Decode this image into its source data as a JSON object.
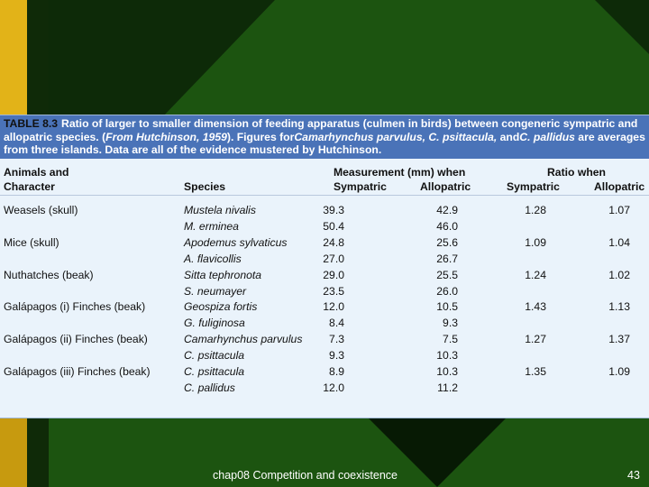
{
  "table": {
    "label": "TABLE 8.3",
    "caption_parts": [
      {
        "t": "Ratio of larger to smaller dimension of feeding apparatus (culmen in birds) between congeneric sympatric and allopatric species. (",
        "i": false
      },
      {
        "t": "From Hutchinson, 1959",
        "i": true
      },
      {
        "t": "). Figures for",
        "i": false
      },
      {
        "t": "Camarhynchus parvulus, C. psittacula,",
        "i": true
      },
      {
        "t": " and",
        "i": false
      },
      {
        "t": "C. pallidus",
        "i": true
      },
      {
        "t": " are averages from three islands. Data are all of the evidence mustered by Hutchinson.",
        "i": false
      }
    ],
    "headers": {
      "animals_line1": "Animals and",
      "animals_line2": "Character",
      "species": "Species",
      "measurement": "Measurement (mm) when",
      "ratio": "Ratio when",
      "sympatric": "Sympatric",
      "allopatric": "Allopatric"
    },
    "rows": [
      {
        "animal": "Weasels (skull)",
        "species": "Mustela nivalis",
        "sym": "39.3",
        "allo": "42.9",
        "rsym": "1.28",
        "rallo": "1.07"
      },
      {
        "animal": "",
        "species": "M. erminea",
        "sym": "50.4",
        "allo": "46.0",
        "rsym": "",
        "rallo": ""
      },
      {
        "animal": "Mice (skull)",
        "species": "Apodemus sylvaticus",
        "sym": "24.8",
        "allo": "25.6",
        "rsym": "1.09",
        "rallo": "1.04"
      },
      {
        "animal": "",
        "species": "A. flavicollis",
        "sym": "27.0",
        "allo": "26.7",
        "rsym": "",
        "rallo": ""
      },
      {
        "animal": "Nuthatches (beak)",
        "species": "Sitta tephronota",
        "sym": "29.0",
        "allo": "25.5",
        "rsym": "1.24",
        "rallo": "1.02"
      },
      {
        "animal": "",
        "species": "S. neumayer",
        "sym": "23.5",
        "allo": "26.0",
        "rsym": "",
        "rallo": ""
      },
      {
        "animal": "Galápagos (i) Finches (beak)",
        "species": "Geospiza fortis",
        "sym": "12.0",
        "allo": "10.5",
        "rsym": "1.43",
        "rallo": "1.13"
      },
      {
        "animal": "",
        "species": "G. fuliginosa",
        "sym": "8.4",
        "allo": "9.3",
        "rsym": "",
        "rallo": ""
      },
      {
        "animal": "Galápagos (ii) Finches (beak)",
        "species": "Camarhynchus parvulus",
        "sym": "7.3",
        "allo": "7.5",
        "rsym": "1.27",
        "rallo": "1.37"
      },
      {
        "animal": "",
        "species": "C. psittacula",
        "sym": "9.3",
        "allo": "10.3",
        "rsym": "",
        "rallo": ""
      },
      {
        "animal": "Galápagos (iii) Finches (beak)",
        "species": "C. psittacula",
        "sym": "8.9",
        "allo": "10.3",
        "rsym": "1.35",
        "rallo": "1.09"
      },
      {
        "animal": "",
        "species": "C. pallidus",
        "sym": "12.0",
        "allo": "11.2",
        "rsym": "",
        "rallo": ""
      }
    ]
  },
  "footer": {
    "text": "chap08 Competition and coexistence",
    "page": "43"
  },
  "colors": {
    "background": "#1c5410",
    "accent_bar": "#e2b318",
    "caption_band": "#4a73b8",
    "table_bg": "#eaf3fb"
  }
}
